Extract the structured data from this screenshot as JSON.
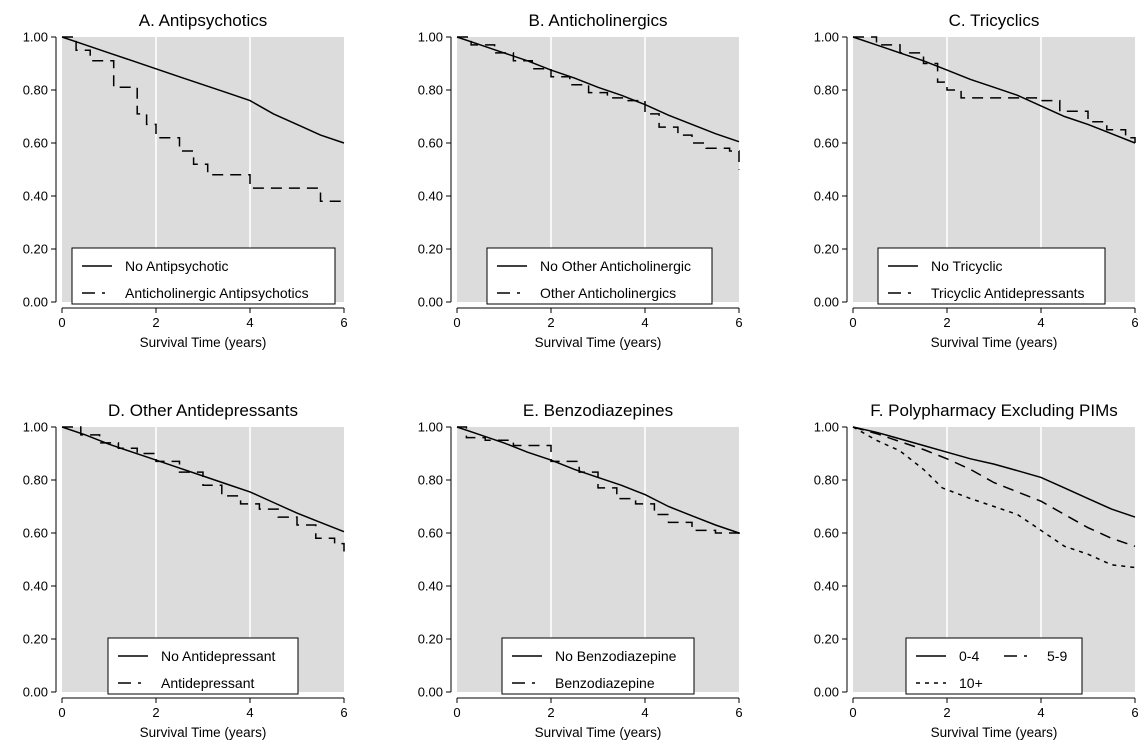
{
  "colors": {
    "panel_bg": "#dcdcdc",
    "grid": "#ffffff",
    "line": "#000000",
    "legend_bg": "#ffffff"
  },
  "chart_data": [
    {
      "type": "line",
      "title": "A. Antipsychotics",
      "xlabel": "Survival Time (years)",
      "ylabel": "",
      "xlim": [
        0,
        6
      ],
      "ylim": [
        0,
        1
      ],
      "xticks": [
        "0",
        "2",
        "4",
        "6"
      ],
      "yticks": [
        "0.00",
        "0.20",
        "0.40",
        "0.60",
        "0.80",
        "1.00"
      ],
      "grid": true,
      "legend_position": "bottom",
      "series": [
        {
          "name": "No Antipsychotic",
          "style": "solid",
          "step": false,
          "x": [
            0,
            0.5,
            1,
            1.5,
            2,
            2.5,
            3,
            3.5,
            4,
            4.5,
            5,
            5.5,
            6
          ],
          "y": [
            1.0,
            0.97,
            0.94,
            0.91,
            0.88,
            0.85,
            0.82,
            0.79,
            0.76,
            0.71,
            0.67,
            0.63,
            0.6
          ]
        },
        {
          "name": "Anticholinergic Antipsychotics",
          "style": "longdash",
          "step": true,
          "x": [
            0,
            0.3,
            0.6,
            1.1,
            1.6,
            1.8,
            2.0,
            2.5,
            2.8,
            3.1,
            4.0,
            5.5,
            6
          ],
          "y": [
            1.0,
            0.95,
            0.91,
            0.81,
            0.71,
            0.67,
            0.62,
            0.57,
            0.52,
            0.48,
            0.43,
            0.38,
            0.37
          ]
        }
      ]
    },
    {
      "type": "line",
      "title": "B. Anticholinergics",
      "xlabel": "Survival Time (years)",
      "ylabel": "",
      "xlim": [
        0,
        6
      ],
      "ylim": [
        0,
        1
      ],
      "xticks": [
        "0",
        "2",
        "4",
        "6"
      ],
      "yticks": [
        "0.00",
        "0.20",
        "0.40",
        "0.60",
        "0.80",
        "1.00"
      ],
      "grid": true,
      "legend_position": "bottom",
      "series": [
        {
          "name": "No Other Anticholinergic",
          "style": "solid",
          "step": false,
          "x": [
            0,
            0.5,
            1,
            1.5,
            2,
            2.5,
            3,
            3.5,
            4,
            4.5,
            5,
            5.5,
            6
          ],
          "y": [
            1.0,
            0.97,
            0.94,
            0.91,
            0.875,
            0.845,
            0.81,
            0.78,
            0.745,
            0.705,
            0.67,
            0.635,
            0.605
          ]
        },
        {
          "name": "Other Anticholinergics",
          "style": "longdash",
          "step": true,
          "x": [
            0,
            0.3,
            0.8,
            1.2,
            1.6,
            2.0,
            2.4,
            2.8,
            3.2,
            3.6,
            4.0,
            4.3,
            4.7,
            5.0,
            5.3,
            5.8,
            6.0
          ],
          "y": [
            1.0,
            0.97,
            0.94,
            0.91,
            0.88,
            0.85,
            0.82,
            0.79,
            0.77,
            0.76,
            0.71,
            0.66,
            0.63,
            0.6,
            0.58,
            0.57,
            0.5
          ]
        }
      ]
    },
    {
      "type": "line",
      "title": "C. Tricyclics",
      "xlabel": "Survival Time (years)",
      "ylabel": "",
      "xlim": [
        0,
        6
      ],
      "ylim": [
        0,
        1
      ],
      "xticks": [
        "0",
        "2",
        "4",
        "6"
      ],
      "yticks": [
        "0.00",
        "0.20",
        "0.40",
        "0.60",
        "0.80",
        "1.00"
      ],
      "grid": true,
      "legend_position": "bottom",
      "series": [
        {
          "name": "No Tricyclic",
          "style": "solid",
          "step": false,
          "x": [
            0,
            0.5,
            1,
            1.5,
            2,
            2.5,
            3,
            3.5,
            4,
            4.5,
            5,
            5.5,
            6
          ],
          "y": [
            1.0,
            0.97,
            0.94,
            0.91,
            0.875,
            0.84,
            0.81,
            0.78,
            0.74,
            0.7,
            0.67,
            0.635,
            0.6
          ]
        },
        {
          "name": "Tricyclic Antidepressants",
          "style": "longdash",
          "step": true,
          "x": [
            0,
            0.5,
            1,
            1.5,
            1.8,
            2.0,
            2.3,
            3.9,
            4.4,
            5.0,
            5.4,
            5.8,
            6.0
          ],
          "y": [
            1.0,
            0.97,
            0.94,
            0.9,
            0.83,
            0.8,
            0.77,
            0.76,
            0.72,
            0.68,
            0.65,
            0.62,
            0.6
          ]
        }
      ]
    },
    {
      "type": "line",
      "title": "D. Other Antidepressants",
      "xlabel": "Survival Time (years)",
      "ylabel": "",
      "xlim": [
        0,
        6
      ],
      "ylim": [
        0,
        1
      ],
      "xticks": [
        "0",
        "2",
        "4",
        "6"
      ],
      "yticks": [
        "0.00",
        "0.20",
        "0.40",
        "0.60",
        "0.80",
        "1.00"
      ],
      "grid": true,
      "legend_position": "bottom",
      "series": [
        {
          "name": "No Antidepressant",
          "style": "solid",
          "step": false,
          "x": [
            0,
            0.5,
            1,
            1.5,
            2,
            2.5,
            3,
            3.5,
            4,
            4.5,
            5,
            5.5,
            6
          ],
          "y": [
            1.0,
            0.97,
            0.935,
            0.905,
            0.875,
            0.845,
            0.815,
            0.785,
            0.755,
            0.715,
            0.675,
            0.64,
            0.605
          ]
        },
        {
          "name": "Antidepressant",
          "style": "longdash",
          "step": true,
          "x": [
            0,
            0.4,
            0.8,
            1.2,
            1.6,
            2.0,
            2.5,
            3.0,
            3.4,
            3.8,
            4.2,
            4.6,
            5.0,
            5.4,
            5.8,
            6.0
          ],
          "y": [
            1.0,
            0.97,
            0.94,
            0.92,
            0.9,
            0.87,
            0.83,
            0.78,
            0.74,
            0.71,
            0.69,
            0.66,
            0.63,
            0.58,
            0.56,
            0.53
          ]
        }
      ]
    },
    {
      "type": "line",
      "title": "E. Benzodiazepines",
      "xlabel": "Survival Time (years)",
      "ylabel": "",
      "xlim": [
        0,
        6
      ],
      "ylim": [
        0,
        1
      ],
      "xticks": [
        "0",
        "2",
        "4",
        "6"
      ],
      "yticks": [
        "0.00",
        "0.20",
        "0.40",
        "0.60",
        "0.80",
        "1.00"
      ],
      "grid": true,
      "legend_position": "bottom",
      "series": [
        {
          "name": "No Benzodiazepine",
          "style": "solid",
          "step": false,
          "x": [
            0,
            0.5,
            1,
            1.5,
            2,
            2.5,
            3,
            3.5,
            4,
            4.5,
            5,
            5.5,
            6
          ],
          "y": [
            1.0,
            0.97,
            0.94,
            0.905,
            0.875,
            0.84,
            0.81,
            0.78,
            0.745,
            0.7,
            0.665,
            0.63,
            0.6
          ]
        },
        {
          "name": "Benzodiazepine",
          "style": "longdash",
          "step": true,
          "x": [
            0,
            0.2,
            0.6,
            1.2,
            2.0,
            2.6,
            3.0,
            3.4,
            3.8,
            4.2,
            4.5,
            5.0,
            5.5,
            6.0
          ],
          "y": [
            1.0,
            0.96,
            0.95,
            0.93,
            0.87,
            0.83,
            0.77,
            0.73,
            0.71,
            0.67,
            0.64,
            0.61,
            0.6,
            0.57
          ]
        }
      ]
    },
    {
      "type": "line",
      "title": "F. Polypharmacy Excluding PIMs",
      "xlabel": "Survival Time (years)",
      "ylabel": "",
      "xlim": [
        0,
        6
      ],
      "ylim": [
        0,
        1
      ],
      "xticks": [
        "0",
        "2",
        "4",
        "6"
      ],
      "yticks": [
        "0.00",
        "0.20",
        "0.40",
        "0.60",
        "0.80",
        "1.00"
      ],
      "grid": true,
      "legend_position": "bottom",
      "legend_columns": 2,
      "series": [
        {
          "name": "0-4",
          "style": "solid",
          "step": false,
          "x": [
            0,
            0.5,
            1,
            1.5,
            2,
            2.5,
            3,
            3.5,
            4,
            4.5,
            5,
            5.5,
            6
          ],
          "y": [
            1.0,
            0.98,
            0.955,
            0.93,
            0.905,
            0.88,
            0.86,
            0.835,
            0.81,
            0.77,
            0.73,
            0.69,
            0.66
          ]
        },
        {
          "name": "5-9",
          "style": "longdash",
          "step": false,
          "x": [
            0,
            0.5,
            1,
            1.5,
            2,
            2.5,
            3,
            3.5,
            4,
            4.5,
            5,
            5.5,
            6
          ],
          "y": [
            1.0,
            0.975,
            0.945,
            0.915,
            0.88,
            0.84,
            0.79,
            0.755,
            0.72,
            0.67,
            0.62,
            0.58,
            0.55
          ]
        },
        {
          "name": "10+",
          "style": "shortdash",
          "step": false,
          "x": [
            0,
            0.5,
            1,
            1.5,
            1.9,
            2.5,
            3,
            3.5,
            4,
            4.5,
            5,
            5.5,
            6
          ],
          "y": [
            1.0,
            0.95,
            0.91,
            0.84,
            0.77,
            0.73,
            0.7,
            0.67,
            0.61,
            0.55,
            0.52,
            0.48,
            0.47
          ]
        }
      ]
    }
  ]
}
